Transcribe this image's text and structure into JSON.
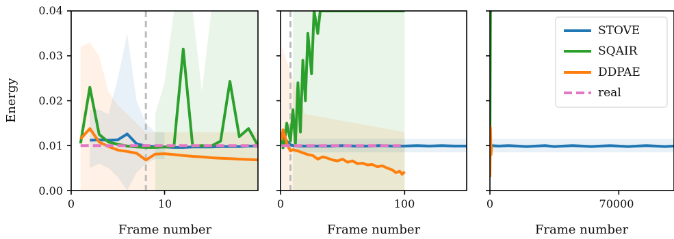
{
  "colors": {
    "STOVE": "#1f77b4",
    "SQAIR": "#2ca02c",
    "DDPAE": "#ff7f0e",
    "real": "#e377c2",
    "vline": "#bbbbbb"
  },
  "chart_data": [
    {
      "type": "line",
      "panel": "left",
      "xlabel": "Frame number",
      "ylabel": "Energy",
      "xlim": [
        0,
        20
      ],
      "ylim": [
        0,
        0.04
      ],
      "xticks": [
        0,
        10
      ],
      "yticks": [
        "0.00",
        "0.01",
        "0.02",
        "0.03",
        "0.04"
      ],
      "vline_x": 8,
      "series": [
        {
          "name": "STOVE",
          "x": [
            2,
            3,
            4,
            5,
            6,
            7,
            8,
            9,
            10,
            11,
            12,
            13,
            14,
            15,
            16,
            17,
            18,
            19,
            20
          ],
          "y": [
            0.0112,
            0.0113,
            0.0112,
            0.0113,
            0.0126,
            0.0104,
            0.0099,
            0.0098,
            0.0097,
            0.0096,
            0.0096,
            0.0097,
            0.0097,
            0.0097,
            0.0098,
            0.0098,
            0.0098,
            0.0099,
            0.0099
          ]
        },
        {
          "name": "SQAIR",
          "x": [
            1,
            2,
            3,
            4,
            5,
            6,
            7,
            8,
            9,
            10,
            11,
            12,
            13,
            14,
            15,
            16,
            17,
            18,
            19,
            20
          ],
          "y": [
            0.0105,
            0.023,
            0.0125,
            0.0108,
            0.0103,
            0.0099,
            0.0097,
            0.0096,
            0.0096,
            0.0097,
            0.0098,
            0.0315,
            0.0099,
            0.01,
            0.0099,
            0.011,
            0.0243,
            0.012,
            0.0138,
            0.01
          ]
        },
        {
          "name": "DDPAE",
          "x": [
            1,
            2,
            3,
            4,
            5,
            6,
            7,
            8,
            9,
            10,
            11,
            12,
            13,
            14,
            15,
            16,
            17,
            18,
            19,
            20
          ],
          "y": [
            0.0115,
            0.0138,
            0.0108,
            0.0098,
            0.009,
            0.0087,
            0.0083,
            0.0068,
            0.0081,
            0.0082,
            0.008,
            0.0078,
            0.0076,
            0.0075,
            0.0073,
            0.0072,
            0.0071,
            0.007,
            0.0069,
            0.0068
          ]
        },
        {
          "name": "real",
          "x": [
            1,
            20
          ],
          "y": [
            0.01,
            0.01
          ]
        }
      ],
      "bands": [
        {
          "series": "DDPAE",
          "x": [
            1,
            2,
            3,
            4,
            5,
            6,
            7,
            8,
            9,
            10,
            12,
            14,
            16,
            18,
            20
          ],
          "lo": [
            0.0,
            0.0,
            0.0,
            0.0,
            0.0,
            0.0,
            0.0,
            0.0,
            0.0,
            0.0,
            0.0,
            0.0,
            0.0,
            0.0,
            0.0
          ],
          "hi": [
            0.032,
            0.033,
            0.03,
            0.022,
            0.019,
            0.017,
            0.015,
            0.013,
            0.013,
            0.013,
            0.013,
            0.013,
            0.013,
            0.013,
            0.013
          ]
        },
        {
          "series": "STOVE",
          "x": [
            2,
            3,
            4,
            5,
            6,
            7,
            8,
            9,
            10
          ],
          "lo": [
            0.005,
            0.006,
            0.005,
            0.003,
            0.0,
            0.004,
            0.006,
            0.007,
            0.007
          ],
          "hi": [
            0.018,
            0.018,
            0.017,
            0.025,
            0.035,
            0.02,
            0.015,
            0.013,
            0.013
          ]
        },
        {
          "series": "SQAIR",
          "x": [
            9,
            10,
            11,
            12,
            13,
            14,
            15,
            16,
            17,
            18,
            19,
            20
          ],
          "lo": [
            0.0,
            0.0,
            0.0,
            0.0,
            0.0,
            0.0,
            0.0,
            0.0,
            0.0,
            0.0,
            0.0,
            0.0
          ],
          "hi": [
            0.017,
            0.024,
            0.04,
            0.04,
            0.04,
            0.022,
            0.04,
            0.04,
            0.04,
            0.04,
            0.04,
            0.04
          ]
        }
      ]
    },
    {
      "type": "line",
      "panel": "middle",
      "xlabel": "Frame number",
      "xlim": [
        0,
        150
      ],
      "ylim": [
        0,
        0.04
      ],
      "xticks": [
        0,
        100
      ],
      "vline_x": 8,
      "series": [
        {
          "name": "STOVE",
          "x": [
            2,
            5,
            8,
            10,
            15,
            20,
            30,
            40,
            50,
            60,
            70,
            80,
            90,
            100,
            110,
            120,
            130,
            140,
            150
          ],
          "y": [
            0.0125,
            0.011,
            0.0102,
            0.01,
            0.0099,
            0.0099,
            0.0099,
            0.0099,
            0.01,
            0.0099,
            0.0099,
            0.01,
            0.0099,
            0.0099,
            0.01,
            0.0099,
            0.01,
            0.0099,
            0.0099
          ]
        },
        {
          "name": "SQAIR",
          "x": [
            1,
            2,
            3,
            5,
            8,
            10,
            12,
            14,
            16,
            18,
            20,
            22,
            25,
            27,
            30,
            32,
            35,
            37,
            40,
            42,
            44,
            46,
            48,
            50,
            52,
            55,
            58,
            60,
            62,
            65,
            68,
            70,
            72,
            75,
            78,
            80,
            82,
            85,
            88,
            90,
            93,
            96,
            100
          ],
          "y": [
            0.013,
            0.0095,
            0.0105,
            0.015,
            0.011,
            0.018,
            0.0105,
            0.024,
            0.013,
            0.029,
            0.02,
            0.035,
            0.026,
            0.04,
            0.035,
            0.04,
            0.04,
            0.04,
            0.04,
            0.04,
            0.04,
            0.04,
            0.04,
            0.04,
            0.04,
            0.04,
            0.04,
            0.04,
            0.04,
            0.04,
            0.04,
            0.04,
            0.04,
            0.04,
            0.04,
            0.04,
            0.04,
            0.04,
            0.04,
            0.04,
            0.04,
            0.04,
            0.04
          ]
        },
        {
          "name": "DDPAE",
          "x": [
            1,
            2,
            4,
            6,
            8,
            10,
            14,
            18,
            22,
            26,
            30,
            34,
            38,
            42,
            46,
            50,
            54,
            58,
            62,
            66,
            70,
            74,
            78,
            82,
            86,
            90,
            93,
            96,
            98,
            100
          ],
          "y": [
            0.0112,
            0.0135,
            0.0115,
            0.0098,
            0.0088,
            0.0091,
            0.0088,
            0.0084,
            0.008,
            0.0078,
            0.007,
            0.0075,
            0.0072,
            0.0068,
            0.0066,
            0.007,
            0.0063,
            0.0066,
            0.006,
            0.0061,
            0.0057,
            0.0058,
            0.0053,
            0.0055,
            0.005,
            0.0046,
            0.004,
            0.0043,
            0.0036,
            0.0042
          ]
        },
        {
          "name": "real",
          "x": [
            1,
            100
          ],
          "y": [
            0.01,
            0.01
          ]
        }
      ],
      "bands": [
        {
          "series": "SQAIR",
          "x": [
            10,
            100
          ],
          "lo": [
            0.0,
            0.0
          ],
          "hi": [
            0.04,
            0.04
          ]
        },
        {
          "series": "DDPAE",
          "x": [
            1,
            20,
            40,
            60,
            80,
            100
          ],
          "lo": [
            0.0,
            0.0,
            0.0,
            0.0,
            0.0,
            0.0
          ],
          "hi": [
            0.032,
            0.017,
            0.016,
            0.015,
            0.014,
            0.013
          ]
        },
        {
          "series": "STOVE",
          "x": [
            10,
            150
          ],
          "lo": [
            0.0085,
            0.0085
          ],
          "hi": [
            0.0115,
            0.0115
          ]
        }
      ]
    },
    {
      "type": "line",
      "panel": "right",
      "xlabel": "Frame number",
      "xlim": [
        0,
        100000
      ],
      "ylim": [
        0,
        0.04
      ],
      "xticks": [
        0,
        70000
      ],
      "series": [
        {
          "name": "STOVE",
          "x": [
            0,
            5000,
            10000,
            15000,
            20000,
            25000,
            30000,
            35000,
            40000,
            45000,
            50000,
            55000,
            60000,
            65000,
            70000,
            75000,
            80000,
            85000,
            90000,
            95000,
            100000
          ],
          "y": [
            0.01,
            0.0099,
            0.01,
            0.0099,
            0.0098,
            0.0099,
            0.01,
            0.0098,
            0.0099,
            0.01,
            0.0099,
            0.0098,
            0.0099,
            0.01,
            0.0099,
            0.0098,
            0.0099,
            0.01,
            0.0099,
            0.0098,
            0.0099
          ]
        },
        {
          "name": "SQAIR",
          "x": [
            0,
            300,
            600,
            900,
            1200
          ],
          "y": [
            0.01,
            0.04,
            0.04,
            0.04,
            0.04
          ]
        },
        {
          "name": "DDPAE",
          "x": [
            0,
            300,
            600,
            900
          ],
          "y": [
            0.003,
            0.014,
            0.008,
            0.01
          ]
        }
      ],
      "bands": [
        {
          "series": "STOVE",
          "x": [
            0,
            100000
          ],
          "lo": [
            0.0085,
            0.0085
          ],
          "hi": [
            0.0115,
            0.0115
          ]
        }
      ]
    }
  ],
  "legend": {
    "placement": "upper-right of right panel",
    "entries": [
      {
        "label": "STOVE",
        "color_key": "STOVE",
        "dashed": false
      },
      {
        "label": "SQAIR",
        "color_key": "SQAIR",
        "dashed": false
      },
      {
        "label": "DDPAE",
        "color_key": "DDPAE",
        "dashed": false
      },
      {
        "label": "real",
        "color_key": "real",
        "dashed": true
      }
    ]
  }
}
